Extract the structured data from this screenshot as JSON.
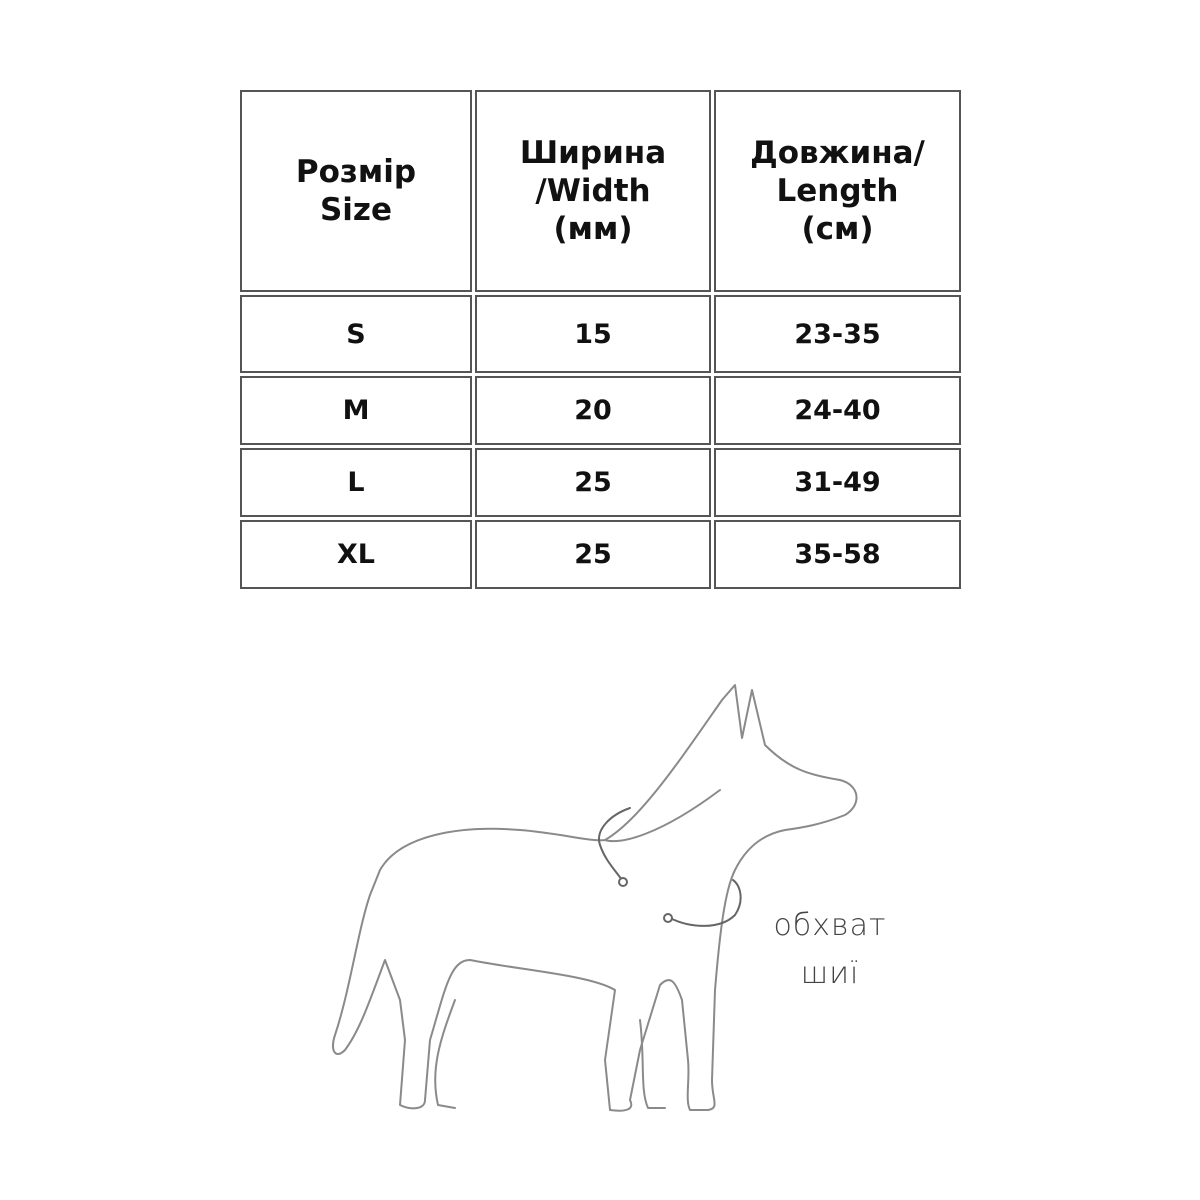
{
  "table": {
    "headers": [
      [
        "Розмір",
        "Size"
      ],
      [
        "Ширина",
        "/Width",
        "(мм)"
      ],
      [
        "Довжина/",
        "Length",
        "(см)"
      ]
    ],
    "rows": [
      [
        "S",
        "15",
        "23-35"
      ],
      [
        "M",
        "20",
        "24-40"
      ],
      [
        "L",
        "25",
        "31-49"
      ],
      [
        "XL",
        "25",
        "35-58"
      ]
    ]
  },
  "illustration": {
    "subject": "dog-outline",
    "caption": [
      "обхват",
      "шиї"
    ]
  }
}
